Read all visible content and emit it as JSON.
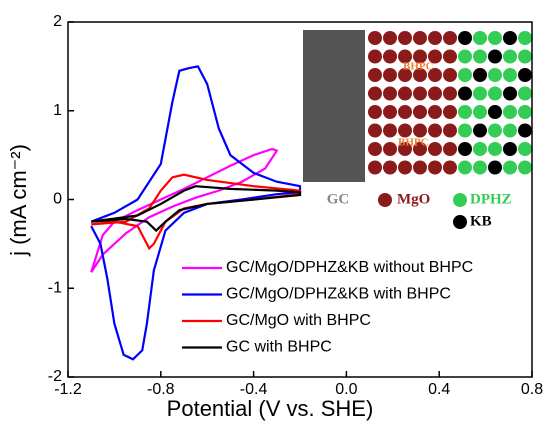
{
  "chart_data": {
    "type": "line",
    "xlabel": "Potential (V vs. SHE)",
    "ylabel": "j (mA cm⁻²)",
    "xlim": [
      -1.2,
      0.8
    ],
    "xticks": [
      -1.2,
      -0.8,
      -0.4,
      {
        "value": 0,
        "label": "0.0"
      },
      0.4,
      0.8
    ],
    "ylim": [
      -2,
      2
    ],
    "yticks": [
      -2,
      -1,
      0,
      1,
      2
    ],
    "legend": "lower center",
    "annotations": [
      "GC",
      "MgO",
      "DPHZ",
      "KB",
      "BHPC",
      "BHPC"
    ],
    "series": [
      {
        "name": "GC/MgO/DPHZ&KB without BHPC",
        "color": "#ff00ff",
        "x": [
          -1.1,
          -1.05,
          -1.0,
          -0.9,
          -0.8,
          -0.7,
          -0.6,
          -0.5,
          -0.4,
          -0.32,
          -0.3,
          -0.35,
          -0.45,
          -0.55,
          -0.65,
          -0.75,
          -0.85,
          -0.95,
          -1.05,
          -1.1
        ],
        "values": [
          -0.82,
          -0.4,
          -0.25,
          -0.12,
          0.0,
          0.12,
          0.25,
          0.38,
          0.5,
          0.57,
          0.55,
          0.35,
          0.2,
          0.1,
          0.02,
          -0.08,
          -0.2,
          -0.38,
          -0.62,
          -0.82
        ]
      },
      {
        "name": "GC/MgO/DPHZ&KB with BHPC",
        "color": "#0000ff",
        "x": [
          -1.1,
          -1.0,
          -0.9,
          -0.8,
          -0.75,
          -0.72,
          -0.68,
          -0.64,
          -0.6,
          -0.55,
          -0.5,
          -0.4,
          -0.3,
          -0.2,
          -0.2,
          -0.3,
          -0.45,
          -0.6,
          -0.7,
          -0.78,
          -0.83,
          -0.86,
          -0.88,
          -0.92,
          -0.96,
          -1.0,
          -1.03,
          -1.06,
          -1.1
        ],
        "values": [
          -0.25,
          -0.15,
          0.0,
          0.4,
          1.1,
          1.45,
          1.48,
          1.5,
          1.3,
          0.8,
          0.5,
          0.3,
          0.2,
          0.15,
          0.08,
          0.06,
          0.0,
          -0.05,
          -0.15,
          -0.35,
          -0.8,
          -1.4,
          -1.7,
          -1.8,
          -1.75,
          -1.4,
          -0.9,
          -0.5,
          -0.3
        ]
      },
      {
        "name": "GC/MgO with BHPC",
        "color": "#ff0000",
        "x": [
          -1.1,
          -0.95,
          -0.85,
          -0.8,
          -0.75,
          -0.7,
          -0.6,
          -0.4,
          -0.2,
          -0.2,
          -0.4,
          -0.6,
          -0.7,
          -0.78,
          -0.83,
          -0.85,
          -0.9,
          -1.0,
          -1.1
        ],
        "values": [
          -0.28,
          -0.25,
          -0.1,
          0.1,
          0.25,
          0.28,
          0.22,
          0.15,
          0.1,
          0.06,
          0.0,
          -0.05,
          -0.1,
          -0.25,
          -0.5,
          -0.55,
          -0.3,
          -0.25,
          -0.28
        ]
      },
      {
        "name": "GC with BHPC",
        "color": "#000000",
        "x": [
          -1.1,
          -0.9,
          -0.8,
          -0.7,
          -0.65,
          -0.5,
          -0.3,
          -0.2,
          -0.2,
          -0.4,
          -0.6,
          -0.72,
          -0.78,
          -0.82,
          -0.86,
          -0.95,
          -1.1
        ],
        "values": [
          -0.25,
          -0.18,
          -0.05,
          0.1,
          0.15,
          0.12,
          0.1,
          0.08,
          0.05,
          0.0,
          -0.05,
          -0.12,
          -0.25,
          -0.35,
          -0.25,
          -0.22,
          -0.25
        ]
      }
    ]
  }
}
